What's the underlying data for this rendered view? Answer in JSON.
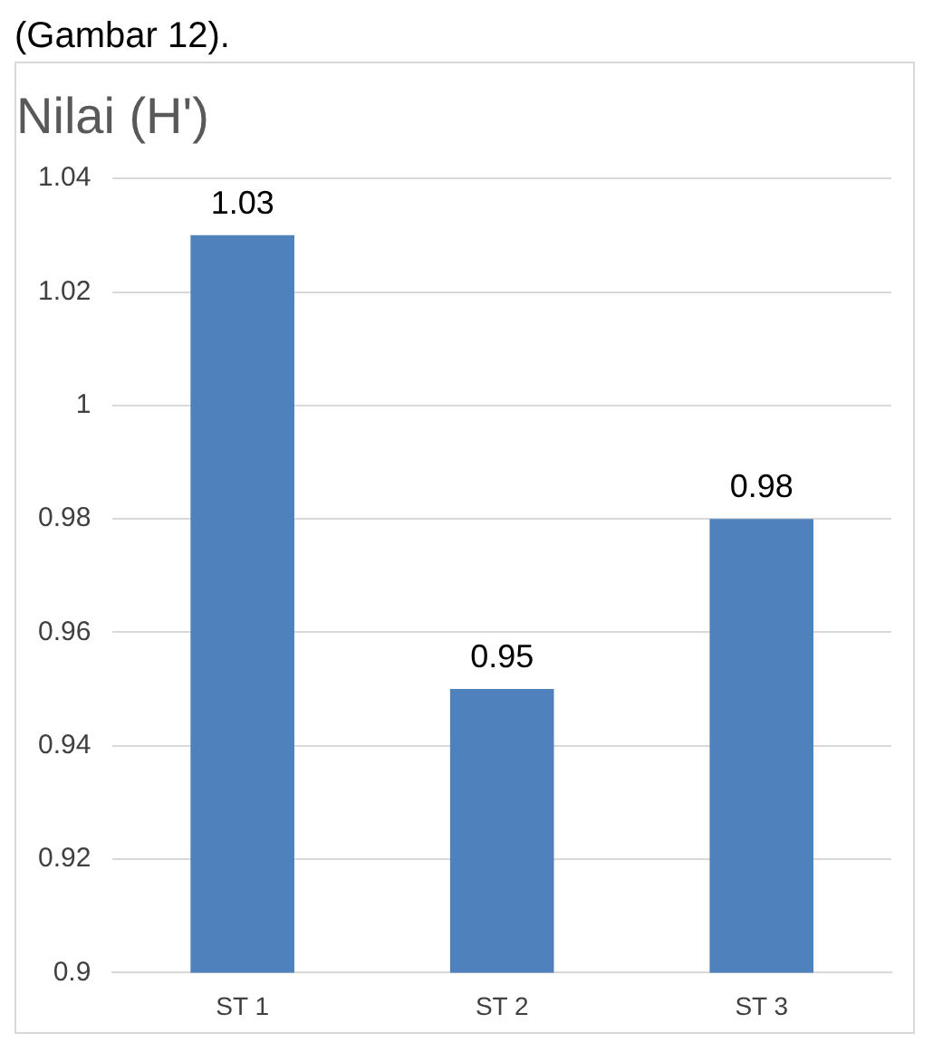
{
  "chart_data": {
    "type": "bar",
    "title": "Nilai (H')",
    "annotations": [
      "(Gambar 12)."
    ],
    "categories": [
      "ST 1",
      "ST 2",
      "ST 3"
    ],
    "values": [
      1.03,
      0.95,
      0.98
    ],
    "color": "#4f81bd",
    "ylim": [
      0.9,
      1.04
    ],
    "yticks": [
      0.9,
      0.92,
      0.94,
      0.96,
      0.98,
      1,
      1.02,
      1.04
    ],
    "grid": "y",
    "data_labels": true,
    "legend": false
  }
}
